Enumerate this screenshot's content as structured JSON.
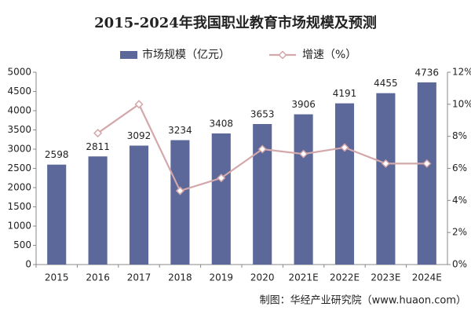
{
  "chart_data": {
    "type": "bar_line",
    "title": "2015-2024年我国职业教育市场规模及预测",
    "categories": [
      "2015",
      "2016",
      "2017",
      "2018",
      "2019",
      "2020",
      "2021E",
      "2022E",
      "2023E",
      "2024E"
    ],
    "series": [
      {
        "name": "市场规模（亿元）",
        "type": "bar",
        "color": "#5b6899",
        "values": [
          2598,
          2811,
          3092,
          3234,
          3408,
          3653,
          3906,
          4191,
          4455,
          4736
        ]
      },
      {
        "name": "增速（%）",
        "type": "line",
        "axis": "y2",
        "color": "#d4a7aa",
        "values": [
          null,
          8.2,
          10.0,
          4.6,
          5.4,
          7.2,
          6.9,
          7.3,
          6.3,
          6.3
        ]
      }
    ],
    "ylim": [
      0,
      5000
    ],
    "yticks": [
      0,
      500,
      1000,
      1500,
      2000,
      2500,
      3000,
      3500,
      4000,
      4500,
      5000
    ],
    "y2lim": [
      0,
      12
    ],
    "y2ticks": [
      {
        "value": 0,
        "label": "0%"
      },
      {
        "value": 2,
        "label": "2%"
      },
      {
        "value": 4,
        "label": "4%"
      },
      {
        "value": 6,
        "label": "6%"
      },
      {
        "value": 8,
        "label": "8%"
      },
      {
        "value": 10,
        "label": "10%"
      },
      {
        "value": 12,
        "label": "12%"
      }
    ],
    "grid": false,
    "legend": "top",
    "source": "制图：华经产业研究院（www.huaon.com）"
  }
}
